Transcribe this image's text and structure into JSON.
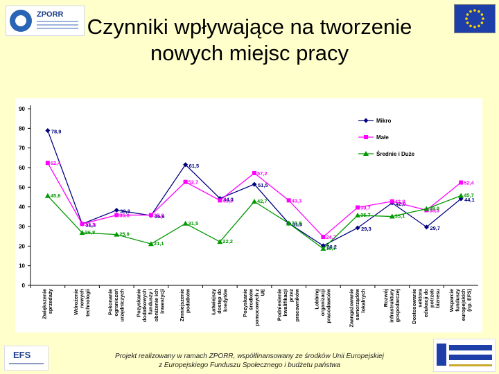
{
  "slide": {
    "title_line1": "Czynniki wpływające na tworzenie",
    "title_line2": "nowych miejsc pracy",
    "footer_line1": "Projekt realizowany w ramach ZPORR, współfinansowany ze środków Unii Europejskiej",
    "footer_line2": "z Europejskiego Funduszu Społecznego i budżetu państwa",
    "logo_top_left": "ZPORR",
    "logo_bottom_left": "EFS",
    "logo_bottom_left_caption": "Europejski Fundusz Społeczny",
    "logo_bottom_right": "EUROPEJSKI FUNDUSZ SPOŁECZNY",
    "eu_flag": "eu-flag-icon"
  },
  "chart_data": {
    "type": "line",
    "title": "",
    "xlabel": "",
    "ylabel": "",
    "ylim": [
      0,
      90
    ],
    "yticks": [
      0,
      10,
      20,
      30,
      40,
      50,
      60,
      70,
      80,
      90
    ],
    "grid": false,
    "legend_position": "top-right",
    "categories": [
      "Zwiększenie sprzedaży",
      "Wdrożenie nowych technologii",
      "Pokonanie ograniczeń urzędniczych",
      "Pozyskanie dodatkowych funduszy i obniżenie ich inwestycji",
      "Zmniejszenie podatków",
      "Łatwiejszy dostęp do kredytów",
      "Pozyskanie środków pomocowych z UE",
      "Podniesienie kwalifikacji przez pracowników",
      "Lobbing organizacji pracodawców",
      "Zaangażowanie samorządów lokalnych",
      "Rozwój infrastruktury gospodarczej",
      "Dostosowanie sektora edukacji do potrzeb biznesu",
      "Wsparcie funduszy europejskich (np. EFS)"
    ],
    "series": [
      {
        "name": "Mikro",
        "color": "#000080",
        "marker": "diamond",
        "values": [
          78.9,
          31.3,
          38.3,
          35.6,
          61.5,
          44.3,
          51.5,
          31.6,
          20.2,
          29.3,
          42.0,
          29.7,
          44.1
        ],
        "labels": [
          "78,9",
          "31,3",
          "38,3",
          "35,6",
          "61,5",
          "44,3",
          "51,5",
          "31,6",
          "20,2",
          "29,3",
          "42,0",
          "29,7",
          "44,1"
        ]
      },
      {
        "name": "Małe",
        "color": "#FF00FF",
        "marker": "square",
        "values": [
          62.4,
          31.3,
          35.8,
          35.8,
          52.7,
          43.3,
          57.2,
          43.3,
          24.7,
          39.7,
          42.8,
          38.3,
          52.4
        ],
        "labels": [
          "62,4",
          "31,3",
          "35,8",
          "35,8",
          "52,7",
          "43,3",
          "57,2",
          "43,3",
          "24,7",
          "39,7",
          "42,8",
          "38,3",
          "52,4"
        ]
      },
      {
        "name": "Średnie i Duże",
        "color": "#009900",
        "marker": "triangle",
        "values": [
          45.6,
          26.8,
          25.9,
          21.1,
          31.5,
          22.2,
          42.7,
          31.6,
          18.7,
          35.7,
          35.1,
          39.0,
          45.7
        ],
        "labels": [
          "45,6",
          "26,8",
          "25,9",
          "21,1",
          "31,5",
          "22,2",
          "42,7",
          "31,6",
          "18,7",
          "35,7",
          "35,1",
          "39,0",
          "45,7"
        ]
      }
    ]
  }
}
